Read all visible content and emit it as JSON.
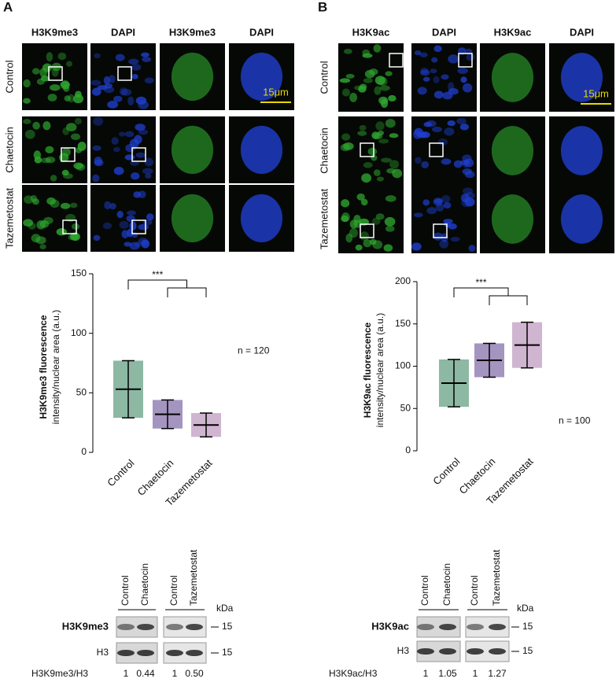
{
  "panels": [
    {
      "label": "A",
      "image_headers": [
        "H3K9me3",
        "DAPI",
        "H3K9me3",
        "DAPI"
      ],
      "row_labels": [
        "Control",
        "Chaetocin",
        "Tazemetostat"
      ],
      "scale_bar": "15μm",
      "blot": {
        "lanes": [
          "Control",
          "Chaetocin",
          "Control",
          "Tazemetostat"
        ],
        "unit": "kDa",
        "rows": [
          {
            "label": "H3K9me3",
            "marker": "15"
          },
          {
            "label": "H3",
            "marker": "15"
          }
        ],
        "ratio_label": "H3K9me3/H3",
        "ratios": [
          "1",
          "0.44",
          "1",
          "0.50"
        ]
      }
    },
    {
      "label": "B",
      "image_headers": [
        "H3K9ac",
        "DAPI",
        "H3K9ac",
        "DAPI"
      ],
      "row_labels": [
        "Control",
        "Chaetocin",
        "Tazemetostat"
      ],
      "scale_bar": "15μm",
      "blot": {
        "lanes": [
          "Control",
          "Chaetocin",
          "Control",
          "Tazemetostat"
        ],
        "unit": "kDa",
        "rows": [
          {
            "label": "H3K9ac",
            "marker": "15"
          },
          {
            "label": "H3",
            "marker": "15"
          }
        ],
        "ratio_label": "H3K9ac/H3",
        "ratios": [
          "1",
          "1.05",
          "1",
          "1.27"
        ]
      }
    }
  ],
  "chart_data": [
    {
      "type": "dot",
      "y_label": [
        "H3K9me3 fluorescence",
        "intensity/nuclear area (a.u.)"
      ],
      "annotation": "n = 120",
      "significance": "***",
      "categories": [
        "Control",
        "Chaetocin",
        "Tazemetostat"
      ],
      "colors": [
        "#2f7d5a",
        "#5a3d8c",
        "#a878a8"
      ],
      "values": [
        53,
        32,
        23
      ],
      "errors": [
        24,
        12,
        10
      ],
      "ylim": [
        0,
        150
      ],
      "yticks": [
        0,
        50,
        100,
        150
      ]
    },
    {
      "type": "dot",
      "y_label": [
        "H3K9ac fluorescence",
        "intensity/nuclear area (a.u.)"
      ],
      "annotation": "n = 100",
      "significance": "***",
      "categories": [
        "Control",
        "Chaetocin",
        "Tazemetostat"
      ],
      "colors": [
        "#2f7d5a",
        "#5a3d8c",
        "#a878a8"
      ],
      "values": [
        80,
        107,
        125
      ],
      "errors": [
        28,
        20,
        27
      ],
      "ylim": [
        0,
        200
      ],
      "yticks": [
        0,
        50,
        100,
        150,
        200
      ]
    }
  ]
}
